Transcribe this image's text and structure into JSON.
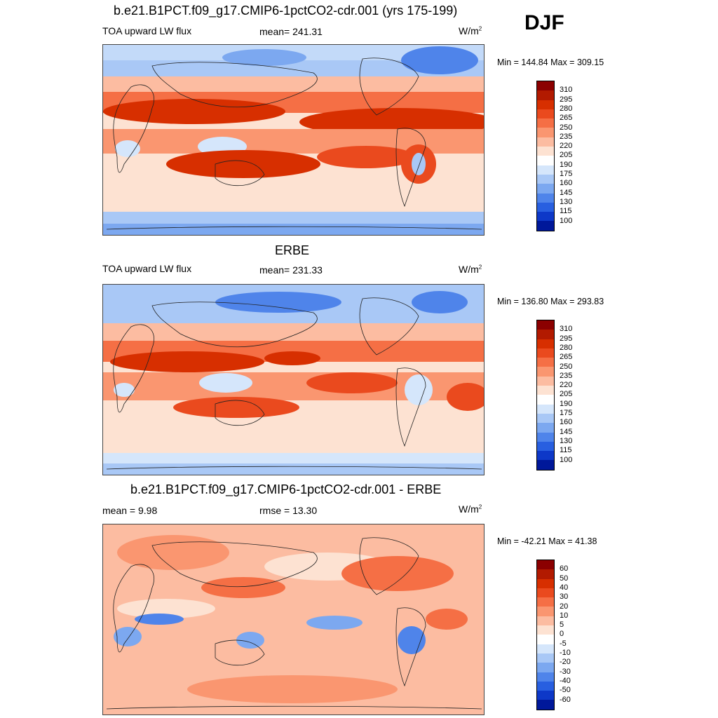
{
  "season": "DJF",
  "panels": [
    {
      "id": "model",
      "title": "b.e21.B1PCT.f09_g17.CMIP6-1pctCO2-cdr.001 (yrs 175-199)",
      "left_label": "TOA upward LW flux",
      "center_label": "mean= 241.31",
      "units_base": "W/m",
      "units_exp": "2",
      "minmax": "Min = 144.84 Max = 309.15"
    },
    {
      "id": "obs",
      "title": "ERBE",
      "left_label": "TOA upward LW flux",
      "center_label": "mean= 231.33",
      "units_base": "W/m",
      "units_exp": "2",
      "minmax": "Min = 136.80 Max = 293.83"
    },
    {
      "id": "diff",
      "title": "b.e21.B1PCT.f09_g17.CMIP6-1pctCO2-cdr.001 - ERBE",
      "left_label": "mean =   9.98",
      "center_label": "rmse =  13.30",
      "units_base": "W/m",
      "units_exp": "2",
      "minmax": "Min = -42.21 Max =  41.38"
    }
  ],
  "chart_data": [
    {
      "type": "heatmap",
      "title": "b.e21.B1PCT.f09_g17.CMIP6-1pctCO2-cdr.001 (yrs 175-199)",
      "variable": "TOA upward LW flux",
      "mean": 241.31,
      "min": 144.84,
      "max": 309.15,
      "colorbar_levels": [
        310,
        295,
        280,
        265,
        250,
        235,
        220,
        205,
        190,
        175,
        160,
        145,
        130,
        115,
        100
      ]
    },
    {
      "type": "heatmap",
      "title": "ERBE",
      "variable": "TOA upward LW flux",
      "mean": 231.33,
      "min": 136.8,
      "max": 293.83,
      "colorbar_levels": [
        310,
        295,
        280,
        265,
        250,
        235,
        220,
        205,
        190,
        175,
        160,
        145,
        130,
        115,
        100
      ]
    },
    {
      "type": "heatmap",
      "title": "b.e21.B1PCT.f09_g17.CMIP6-1pctCO2-cdr.001 - ERBE",
      "mean": 9.98,
      "rmse": 13.3,
      "min": -42.21,
      "max": 41.38,
      "colorbar_levels": [
        60,
        50,
        40,
        30,
        20,
        10,
        5,
        0,
        -5,
        -10,
        -20,
        -30,
        -40,
        -50,
        -60
      ]
    }
  ],
  "colors": {
    "scale": [
      "#8b0000",
      "#b21a00",
      "#d72f00",
      "#ea4a1e",
      "#f56f45",
      "#fa9670",
      "#fcbca1",
      "#fde2d2",
      "#ffffff",
      "#d5e6fb",
      "#a9c8f6",
      "#7ca8f0",
      "#4f84ea",
      "#285fe0",
      "#0d38c8",
      "#00189a",
      "#000066"
    ],
    "land_line": "#222222"
  }
}
